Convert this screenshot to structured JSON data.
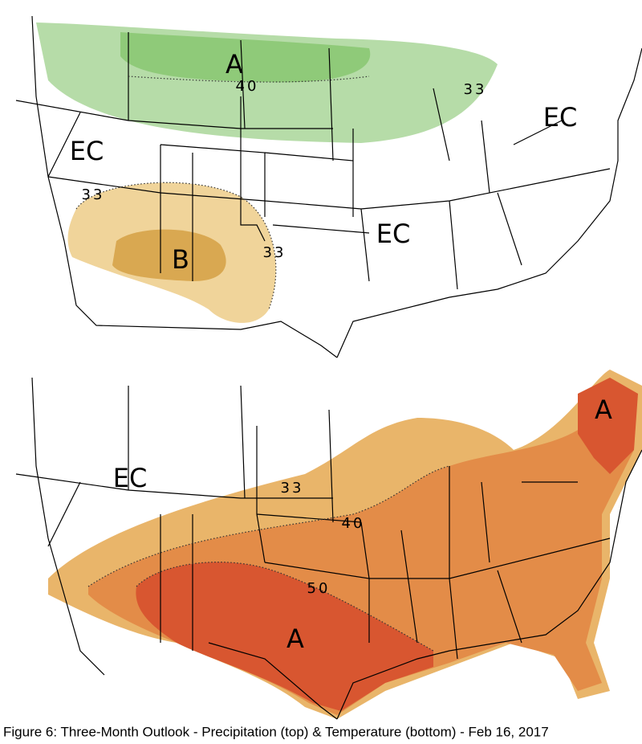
{
  "top_map": {
    "labels": [
      "A",
      "40",
      "33",
      "EC",
      "EC",
      "33",
      "EC",
      "B",
      "33"
    ]
  },
  "bottom_map": {
    "labels": [
      "A",
      "EC",
      "33",
      "40",
      "50",
      "A"
    ]
  },
  "caption": "Figure 6: Three-Month Outlook - Precipitation (top) & Temperature (bottom) - Feb 16, 2017"
}
